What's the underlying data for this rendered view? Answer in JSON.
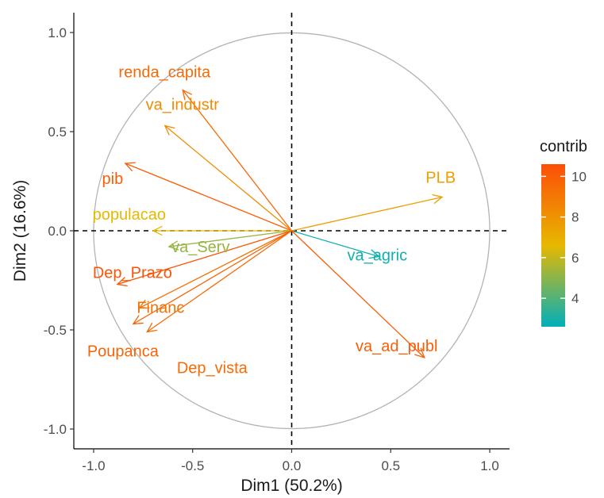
{
  "chart_data": {
    "type": "scatter",
    "subtype": "pca-variables-correlation-circle",
    "xlabel": "Dim1 (50.2%)",
    "ylabel": "Dim2 (16.6%)",
    "xlim": [
      -1.1,
      1.1
    ],
    "ylim": [
      -1.1,
      1.1
    ],
    "x_ticks": [
      -1.0,
      -0.5,
      0.0,
      0.5,
      1.0
    ],
    "x_tick_labels": [
      "-1.0",
      "-0.5",
      "0.0",
      "0.5",
      "1.0"
    ],
    "y_ticks": [
      -1.0,
      -0.5,
      0.0,
      0.5,
      1.0
    ],
    "y_tick_labels": [
      "-1.0",
      "-0.5",
      "0.0",
      "0.5",
      "1.0"
    ],
    "grid": false,
    "unit_circle": true,
    "reference_lines": "dashed x=0 and y=0",
    "variables": [
      {
        "name": "renda_capita",
        "x": -0.55,
        "y": 0.71,
        "contrib": 9.6
      },
      {
        "name": "va_industr",
        "x": -0.64,
        "y": 0.53,
        "contrib": 8.3
      },
      {
        "name": "pib",
        "x": -0.84,
        "y": 0.34,
        "contrib": 10.0
      },
      {
        "name": "populacao",
        "x": -0.7,
        "y": 0.0,
        "contrib": 6.6
      },
      {
        "name": "va_Serv",
        "x": -0.62,
        "y": -0.08,
        "contrib": 5.2
      },
      {
        "name": "Dep_Prazo",
        "x": -0.88,
        "y": -0.27,
        "contrib": 10.3
      },
      {
        "name": "Financ",
        "x": -0.77,
        "y": -0.39,
        "contrib": 9.2
      },
      {
        "name": "Poupanca",
        "x": -0.8,
        "y": -0.47,
        "contrib": 9.8
      },
      {
        "name": "Dep_vista",
        "x": -0.73,
        "y": -0.51,
        "contrib": 9.5
      },
      {
        "name": "PLB",
        "x": 0.76,
        "y": 0.17,
        "contrib": 7.6
      },
      {
        "name": "va_agric",
        "x": 0.44,
        "y": -0.13,
        "contrib": 2.9
      },
      {
        "name": "va_ad_publ",
        "x": 0.67,
        "y": -0.64,
        "contrib": 10.0
      }
    ],
    "legend": {
      "title": "contrib",
      "position": "right",
      "ticks": [
        4,
        6,
        8,
        10
      ],
      "tick_labels": [
        "4",
        "6",
        "8",
        "10"
      ],
      "range": [
        2.6,
        10.6
      ],
      "gradient_colors": [
        "#00AFBB",
        "#E7B800",
        "#FC4E07"
      ]
    }
  }
}
